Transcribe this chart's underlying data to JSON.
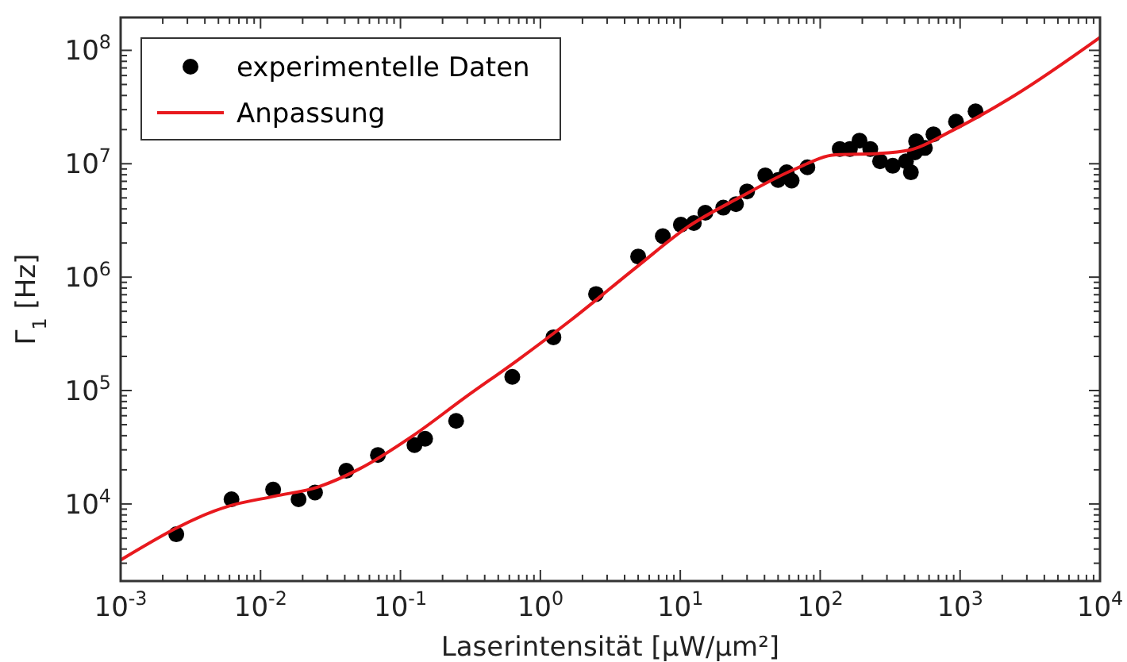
{
  "chart_data": {
    "type": "scatter",
    "xlabel": "Laserintensität [µW/µm²]",
    "ylabel": "Γ$_{1}$ [Hz]",
    "log": "xy",
    "legend": "top left",
    "grid": false,
    "xlim": [
      0.001,
      10000
    ],
    "ylim": [
      2090,
      195000000
    ],
    "xticks": [
      {
        "value": 0.001,
        "label": "10$^{-3}$"
      },
      {
        "value": 0.002,
        "label": null
      },
      {
        "value": 0.003,
        "label": null
      },
      {
        "value": 0.004,
        "label": null
      },
      {
        "value": 0.005,
        "label": null
      },
      {
        "value": 0.006,
        "label": null
      },
      {
        "value": 0.007,
        "label": null
      },
      {
        "value": 0.008,
        "label": null
      },
      {
        "value": 0.009,
        "label": null
      },
      {
        "value": 0.01,
        "label": "10$^{-2}$"
      },
      {
        "value": 0.02,
        "label": null
      },
      {
        "value": 0.03,
        "label": null
      },
      {
        "value": 0.04,
        "label": null
      },
      {
        "value": 0.05,
        "label": null
      },
      {
        "value": 0.06,
        "label": null
      },
      {
        "value": 0.07,
        "label": null
      },
      {
        "value": 0.08,
        "label": null
      },
      {
        "value": 0.09,
        "label": null
      },
      {
        "value": 0.1,
        "label": "10$^{-1}$"
      },
      {
        "value": 0.2,
        "label": null
      },
      {
        "value": 0.3,
        "label": null
      },
      {
        "value": 0.4,
        "label": null
      },
      {
        "value": 0.5,
        "label": null
      },
      {
        "value": 0.6,
        "label": null
      },
      {
        "value": 0.7,
        "label": null
      },
      {
        "value": 0.8,
        "label": null
      },
      {
        "value": 0.9,
        "label": null
      },
      {
        "value": 1,
        "label": "10$^{0}$"
      },
      {
        "value": 2,
        "label": null
      },
      {
        "value": 3,
        "label": null
      },
      {
        "value": 4,
        "label": null
      },
      {
        "value": 5,
        "label": null
      },
      {
        "value": 6,
        "label": null
      },
      {
        "value": 7,
        "label": null
      },
      {
        "value": 8,
        "label": null
      },
      {
        "value": 9,
        "label": null
      },
      {
        "value": 10,
        "label": "10$^{1}$"
      },
      {
        "value": 20,
        "label": null
      },
      {
        "value": 30,
        "label": null
      },
      {
        "value": 40,
        "label": null
      },
      {
        "value": 50,
        "label": null
      },
      {
        "value": 60,
        "label": null
      },
      {
        "value": 70,
        "label": null
      },
      {
        "value": 80,
        "label": null
      },
      {
        "value": 90,
        "label": null
      },
      {
        "value": 100,
        "label": "10$^{2}$"
      },
      {
        "value": 200,
        "label": null
      },
      {
        "value": 300,
        "label": null
      },
      {
        "value": 400,
        "label": null
      },
      {
        "value": 500,
        "label": null
      },
      {
        "value": 600,
        "label": null
      },
      {
        "value": 700,
        "label": null
      },
      {
        "value": 800,
        "label": null
      },
      {
        "value": 900,
        "label": null
      },
      {
        "value": 1000,
        "label": "10$^{3}$"
      },
      {
        "value": 2000,
        "label": null
      },
      {
        "value": 3000,
        "label": null
      },
      {
        "value": 4000,
        "label": null
      },
      {
        "value": 5000,
        "label": null
      },
      {
        "value": 6000,
        "label": null
      },
      {
        "value": 7000,
        "label": null
      },
      {
        "value": 8000,
        "label": null
      },
      {
        "value": 9000,
        "label": null
      },
      {
        "value": 10000,
        "label": "10$^{4}$"
      }
    ],
    "yticks": [
      {
        "value": 3000,
        "label": null
      },
      {
        "value": 4000,
        "label": null
      },
      {
        "value": 5000,
        "label": null
      },
      {
        "value": 6000,
        "label": null
      },
      {
        "value": 7000,
        "label": null
      },
      {
        "value": 8000,
        "label": null
      },
      {
        "value": 9000,
        "label": null
      },
      {
        "value": 10000,
        "label": "10$^{4}$"
      },
      {
        "value": 20000,
        "label": null
      },
      {
        "value": 30000,
        "label": null
      },
      {
        "value": 40000,
        "label": null
      },
      {
        "value": 50000,
        "label": null
      },
      {
        "value": 60000,
        "label": null
      },
      {
        "value": 70000,
        "label": null
      },
      {
        "value": 80000,
        "label": null
      },
      {
        "value": 90000,
        "label": null
      },
      {
        "value": 100000,
        "label": "10$^{5}$"
      },
      {
        "value": 200000,
        "label": null
      },
      {
        "value": 300000,
        "label": null
      },
      {
        "value": 400000,
        "label": null
      },
      {
        "value": 500000,
        "label": null
      },
      {
        "value": 600000,
        "label": null
      },
      {
        "value": 700000,
        "label": null
      },
      {
        "value": 800000,
        "label": null
      },
      {
        "value": 900000,
        "label": null
      },
      {
        "value": 1000000,
        "label": "10$^{6}$"
      },
      {
        "value": 2000000,
        "label": null
      },
      {
        "value": 3000000,
        "label": null
      },
      {
        "value": 4000000,
        "label": null
      },
      {
        "value": 5000000,
        "label": null
      },
      {
        "value": 6000000,
        "label": null
      },
      {
        "value": 7000000,
        "label": null
      },
      {
        "value": 8000000,
        "label": null
      },
      {
        "value": 9000000,
        "label": null
      },
      {
        "value": 10000000,
        "label": "10$^{7}$"
      },
      {
        "value": 20000000,
        "label": null
      },
      {
        "value": 30000000,
        "label": null
      },
      {
        "value": 40000000,
        "label": null
      },
      {
        "value": 50000000,
        "label": null
      },
      {
        "value": 60000000,
        "label": null
      },
      {
        "value": 70000000,
        "label": null
      },
      {
        "value": 80000000,
        "label": null
      },
      {
        "value": 90000000,
        "label": null
      },
      {
        "value": 100000000,
        "label": "10$^{8}$"
      }
    ],
    "series": [
      {
        "name": "experimentelle Daten",
        "type": "scatter",
        "color": "#000000",
        "marker": "circle",
        "x": [
          0.0025,
          0.0062,
          0.0123,
          0.0187,
          0.0245,
          0.041,
          0.069,
          0.126,
          0.15,
          0.25,
          0.63,
          1.24,
          2.5,
          5.0,
          7.5,
          10.1,
          12.5,
          15.1,
          20.3,
          25,
          30,
          40.5,
          50,
          57.6,
          62.5,
          81,
          138,
          163,
          191,
          228,
          268,
          330,
          410,
          445,
          475,
          485,
          560,
          645,
          935,
          1290
        ],
        "values": [
          5400,
          11000,
          13400,
          11000,
          12600,
          19600,
          27000,
          33000,
          37600,
          54000,
          132000,
          295000,
          710000,
          1520000,
          2300000,
          2900000,
          3000000,
          3700000,
          4100000,
          4400000,
          5700000,
          7900000,
          7200000,
          8400000,
          7100000,
          9300000,
          13500000,
          13500000,
          16000000,
          13500000,
          10500000,
          9600000,
          10500000,
          8400000,
          12600000,
          15800000,
          13800000,
          18200000,
          23500000,
          29000000
        ]
      },
      {
        "name": "Anpassung",
        "type": "line",
        "color": "#e8191e",
        "marker": "none",
        "line_style": "solid",
        "x": [
          0.001,
          0.0058,
          0.0126,
          0.0257,
          0.051,
          0.123,
          0.29,
          0.69,
          1.66,
          5.0,
          11.2,
          27,
          65,
          129,
          257,
          437,
          870,
          2450,
          10000
        ],
        "values": [
          3200,
          9500,
          11700,
          14100,
          20400,
          40000,
          87000,
          186000,
          420000,
          1260000,
          2750000,
          5100000,
          8900000,
          12000000,
          12300000,
          13200000,
          19500000,
          40000000,
          130000000
        ]
      }
    ]
  }
}
